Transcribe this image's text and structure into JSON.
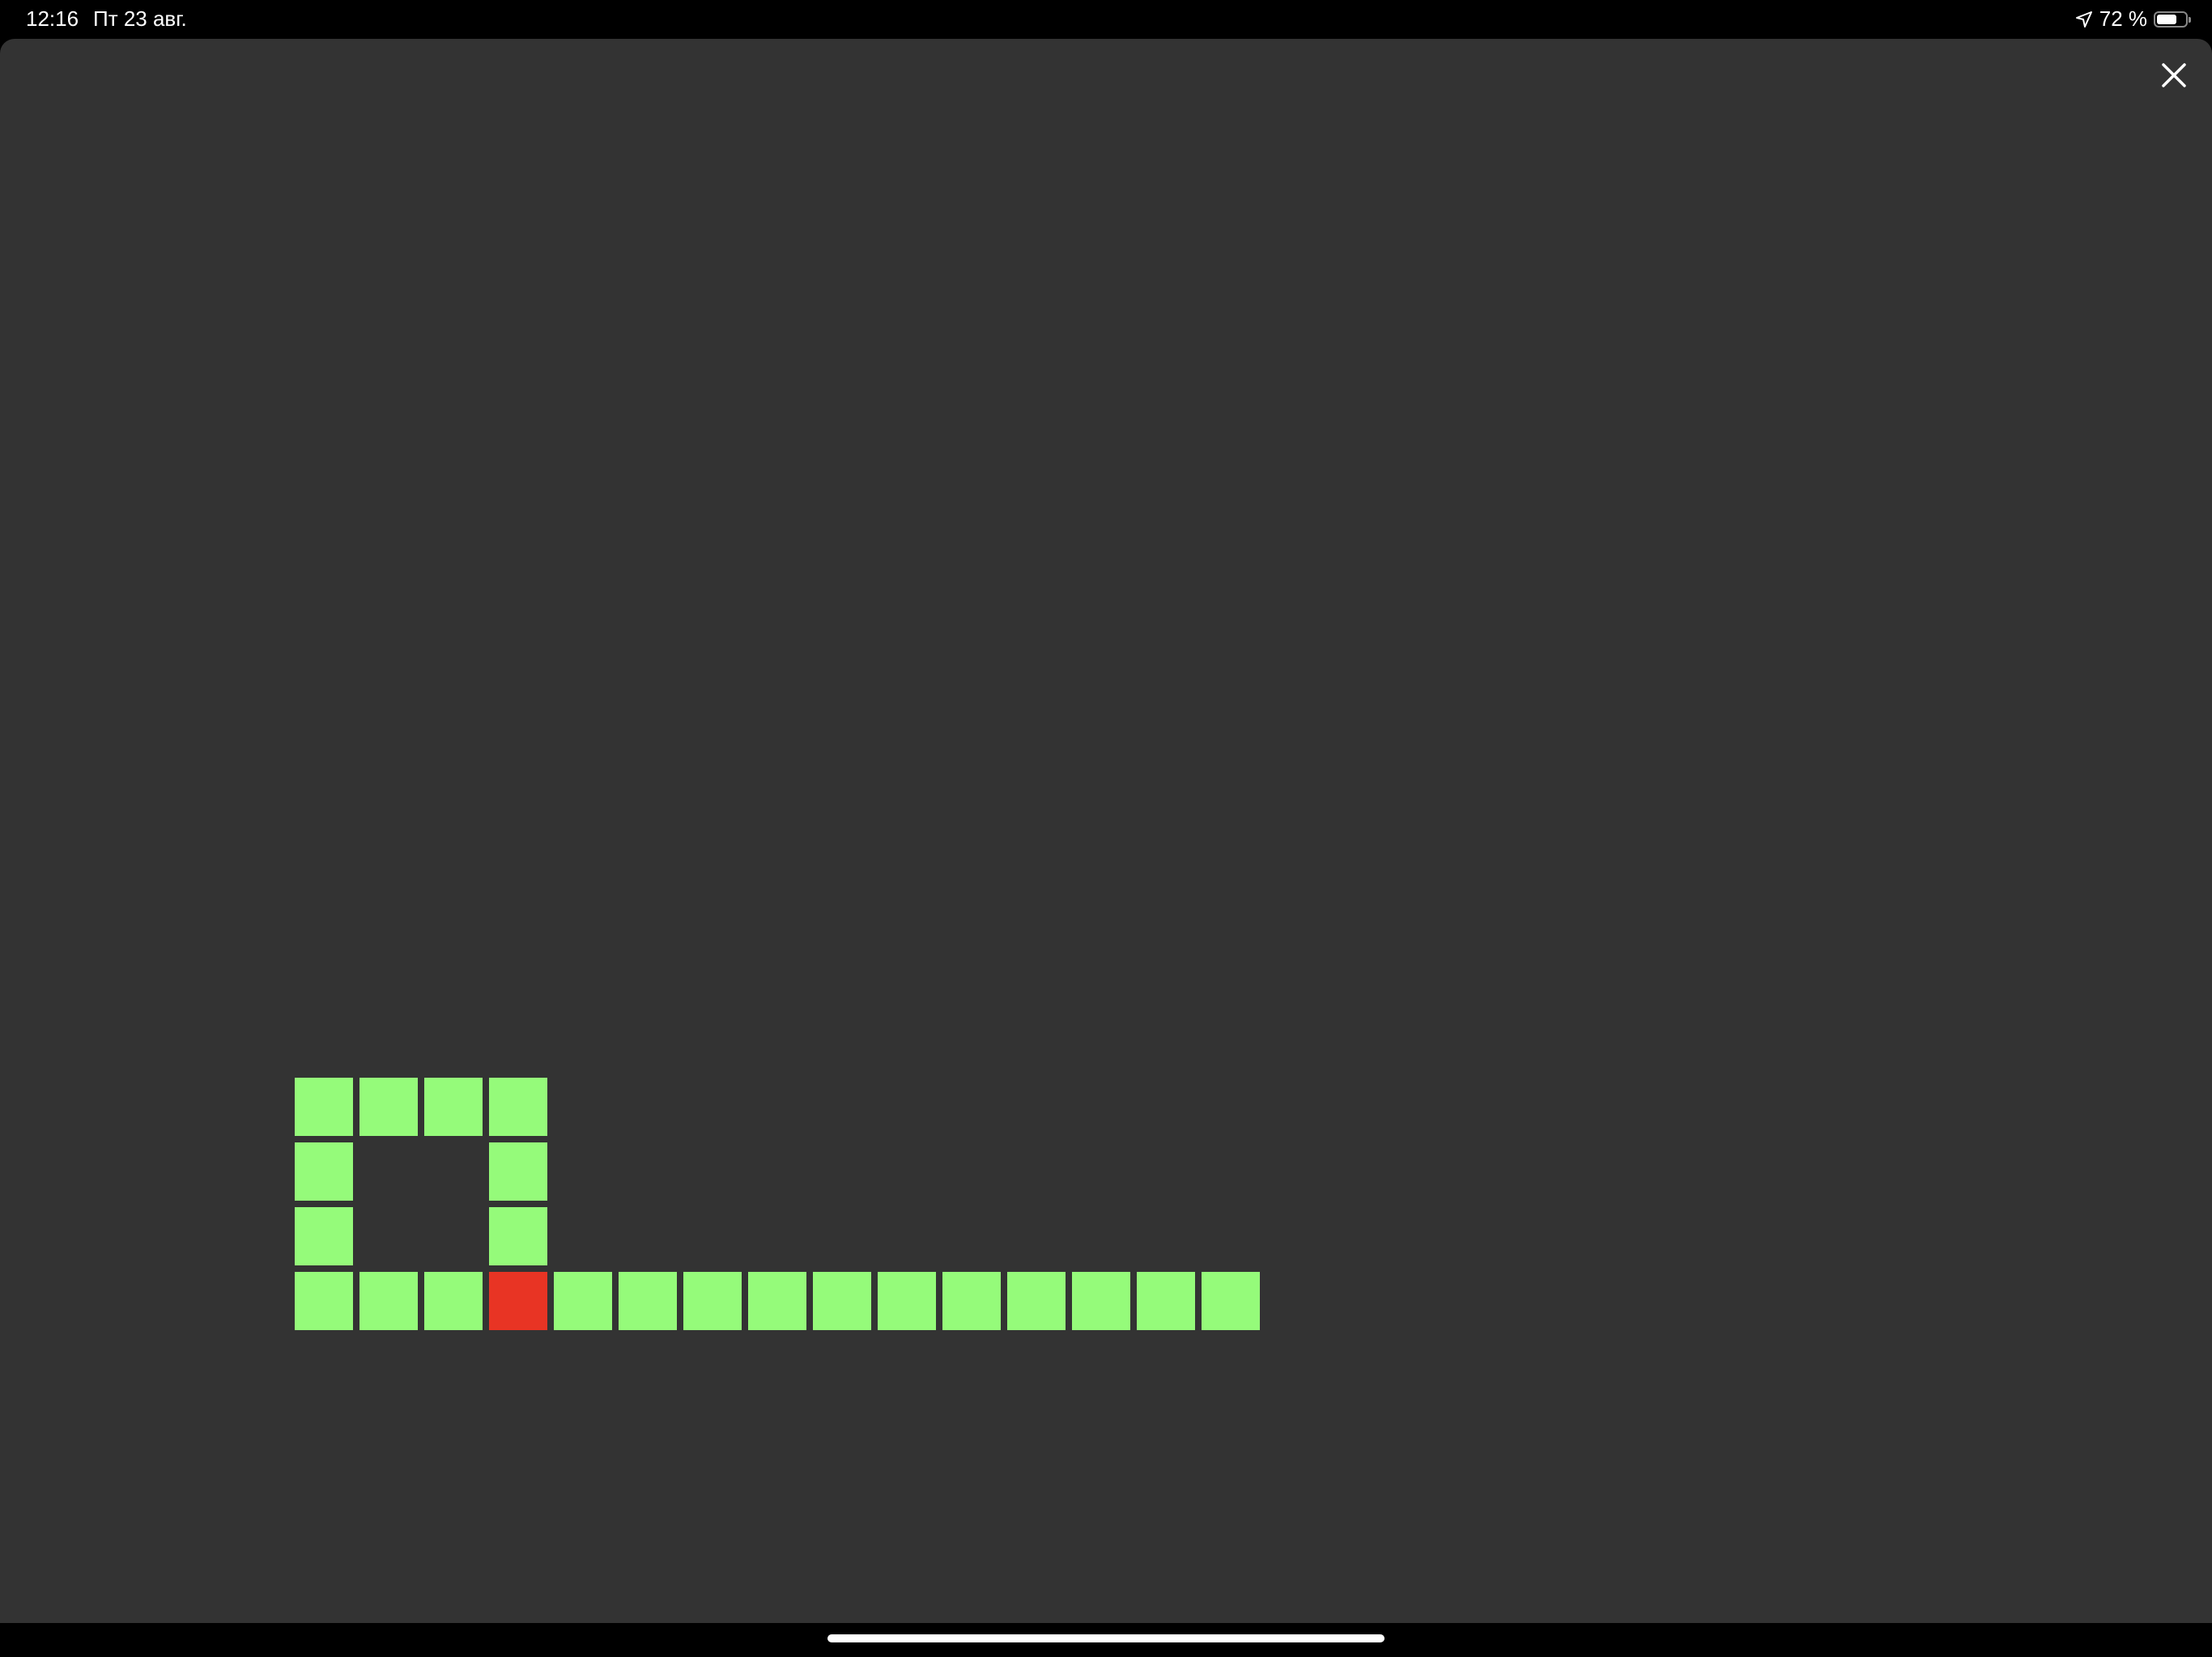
{
  "status_bar": {
    "time": "12:16",
    "date": "Пт 23 авг.",
    "battery_text": "72 %",
    "battery_level": 0.72,
    "location_icon": "location-arrow-icon"
  },
  "close_icon": "close-icon",
  "colors": {
    "background": "#333333",
    "snake": "#95fb7a",
    "head": "#e83424"
  },
  "game": {
    "head": [
      3,
      3
    ],
    "body": [
      [
        0,
        0
      ],
      [
        1,
        0
      ],
      [
        2,
        0
      ],
      [
        3,
        0
      ],
      [
        0,
        1
      ],
      [
        3,
        1
      ],
      [
        0,
        2
      ],
      [
        3,
        2
      ],
      [
        0,
        3
      ],
      [
        1,
        3
      ],
      [
        2,
        3
      ],
      [
        4,
        3
      ],
      [
        5,
        3
      ],
      [
        6,
        3
      ],
      [
        7,
        3
      ],
      [
        8,
        3
      ],
      [
        9,
        3
      ],
      [
        10,
        3
      ],
      [
        11,
        3
      ],
      [
        12,
        3
      ],
      [
        13,
        3
      ],
      [
        14,
        3
      ]
    ]
  }
}
